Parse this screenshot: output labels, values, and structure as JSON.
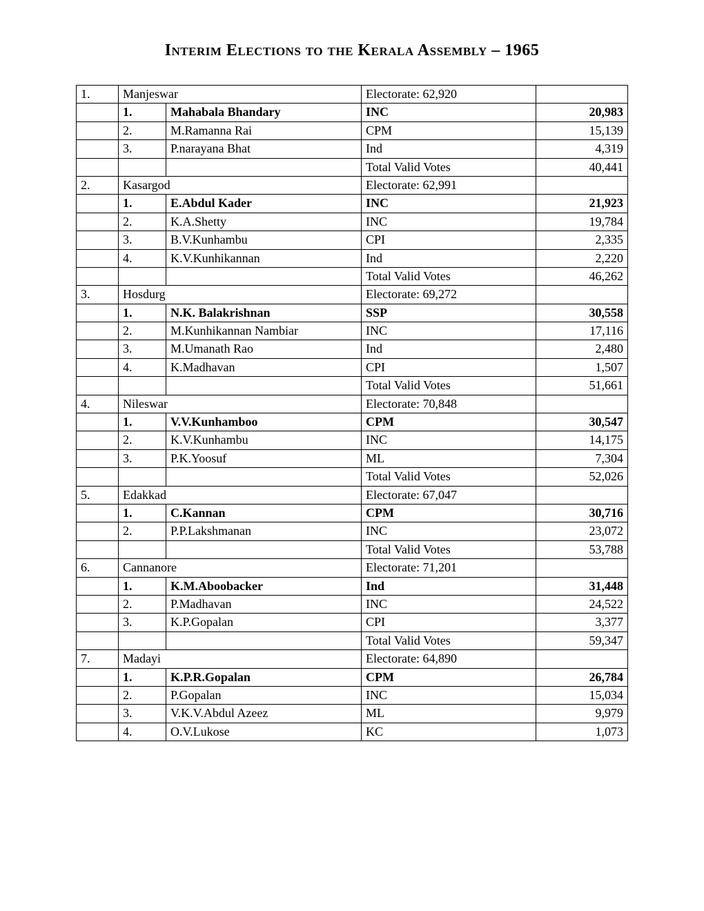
{
  "title": "Interim Elections to the Kerala Assembly – 1965",
  "electorate_prefix": "Electorate: ",
  "tvv_label": "Total Valid Votes",
  "constituencies": [
    {
      "no": "1.",
      "name": "Manjeswar",
      "electorate": "62,920",
      "candidates": [
        {
          "rank": "1.",
          "name": "Mahabala Bhandary",
          "party": "INC",
          "votes": "20,983",
          "winner": true
        },
        {
          "rank": "2.",
          "name": "M.Ramanna Rai",
          "party": "CPM",
          "votes": "15,139"
        },
        {
          "rank": "3.",
          "name": "P.narayana Bhat",
          "party": "Ind",
          "votes": "4,319"
        }
      ],
      "tvv": "40,441"
    },
    {
      "no": "2.",
      "name": "Kasargod",
      "electorate": "62,991",
      "candidates": [
        {
          "rank": "1.",
          "name": "E.Abdul Kader",
          "party": "INC",
          "votes": "21,923",
          "winner": true
        },
        {
          "rank": "2.",
          "name": "K.A.Shetty",
          "party": "INC",
          "votes": "19,784"
        },
        {
          "rank": "3.",
          "name": "B.V.Kunhambu",
          "party": "CPI",
          "votes": "2,335"
        },
        {
          "rank": "4.",
          "name": "K.V.Kunhikannan",
          "party": "Ind",
          "votes": "2,220"
        }
      ],
      "tvv": "46,262"
    },
    {
      "no": "3.",
      "name": "Hosdurg",
      "electorate": "69,272",
      "candidates": [
        {
          "rank": "1.",
          "name": "N.K. Balakrishnan",
          "party": "SSP",
          "votes": "30,558",
          "winner": true
        },
        {
          "rank": "2.",
          "name": "M.Kunhikannan Nambiar",
          "party": "INC",
          "votes": "17,116"
        },
        {
          "rank": "3.",
          "name": "M.Umanath Rao",
          "party": "Ind",
          "votes": "2,480"
        },
        {
          "rank": "4.",
          "name": "K.Madhavan",
          "party": "CPI",
          "votes": "1,507"
        }
      ],
      "tvv": "51,661"
    },
    {
      "no": "4.",
      "name": "Nileswar",
      "electorate": "70,848",
      "candidates": [
        {
          "rank": "1.",
          "name": "V.V.Kunhamboo",
          "party": "CPM",
          "votes": "30,547",
          "winner": true
        },
        {
          "rank": "2.",
          "name": "K.V.Kunhambu",
          "party": "INC",
          "votes": "14,175"
        },
        {
          "rank": "3.",
          "name": "P.K.Yoosuf",
          "party": "ML",
          "votes": "7,304"
        }
      ],
      "tvv": "52,026"
    },
    {
      "no": "5.",
      "name": "Edakkad",
      "electorate": "67,047",
      "candidates": [
        {
          "rank": "1.",
          "name": "C.Kannan",
          "party": "CPM",
          "votes": "30,716",
          "winner": true
        },
        {
          "rank": "2.",
          "name": "P.P.Lakshmanan",
          "party": "INC",
          "votes": "23,072"
        }
      ],
      "tvv": "53,788"
    },
    {
      "no": "6.",
      "name": "Cannanore",
      "electorate": "71,201",
      "candidates": [
        {
          "rank": "1.",
          "name": "K.M.Aboobacker",
          "party": "Ind",
          "votes": "31,448",
          "winner": true
        },
        {
          "rank": "2.",
          "name": "P.Madhavan",
          "party": "INC",
          "votes": "24,522"
        },
        {
          "rank": "3.",
          "name": "K.P.Gopalan",
          "party": "CPI",
          "votes": "3,377"
        }
      ],
      "tvv": "59,347"
    },
    {
      "no": "7.",
      "name": "Madayi",
      "electorate": "64,890",
      "candidates": [
        {
          "rank": "1.",
          "name": "K.P.R.Gopalan",
          "party": "CPM",
          "votes": "26,784",
          "winner": true
        },
        {
          "rank": "2.",
          "name": "P.Gopalan",
          "party": "INC",
          "votes": "15,034"
        },
        {
          "rank": "3.",
          "name": "V.K.V.Abdul Azeez",
          "party": "ML",
          "votes": "9,979"
        },
        {
          "rank": "4.",
          "name": "O.V.Lukose",
          "party": "KC",
          "votes": "1,073"
        }
      ],
      "truncated": true
    }
  ]
}
